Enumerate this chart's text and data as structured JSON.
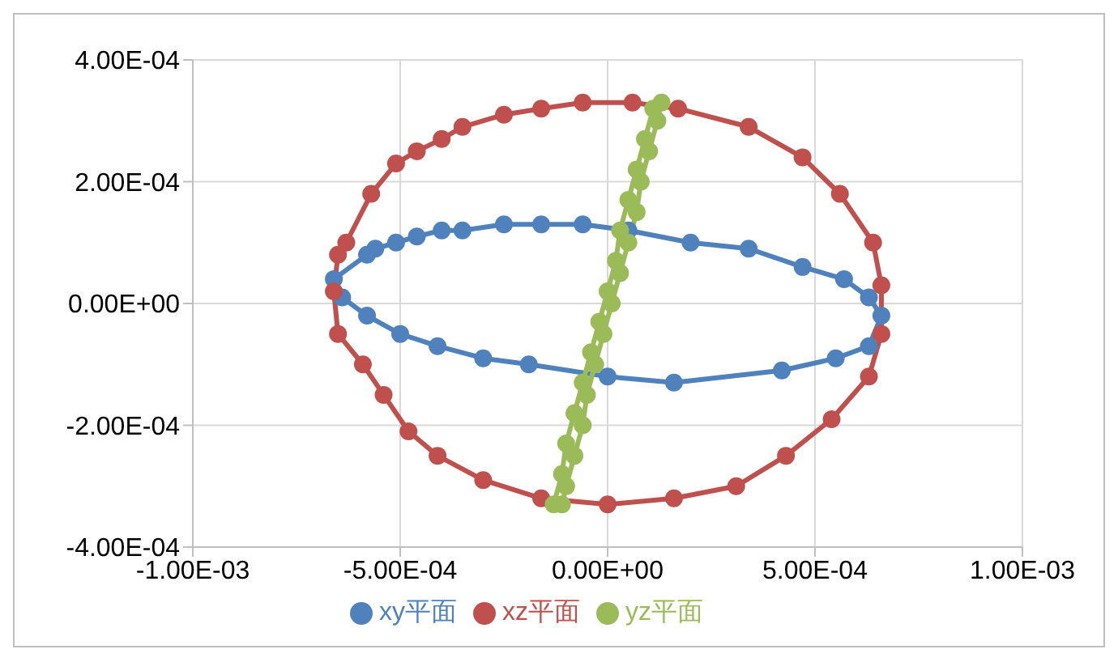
{
  "chart_data": {
    "type": "line",
    "xlim": [
      -0.001,
      0.001
    ],
    "ylim": [
      -0.0004,
      0.0004
    ],
    "xticks": [
      {
        "value": -0.001,
        "label": "-1.00E-03"
      },
      {
        "value": -0.0005,
        "label": "-5.00E-04"
      },
      {
        "value": 0,
        "label": "0.00E+00"
      },
      {
        "value": 0.0005,
        "label": "5.00E-04"
      },
      {
        "value": 0.001,
        "label": "1.00E-03"
      }
    ],
    "yticks": [
      {
        "value": -0.0004,
        "label": "-4.00E-04"
      },
      {
        "value": -0.0002,
        "label": "-2.00E-04"
      },
      {
        "value": 0,
        "label": "0.00E+00"
      },
      {
        "value": 0.0002,
        "label": "2.00E-04"
      },
      {
        "value": 0.0004,
        "label": "4.00E-04"
      }
    ],
    "grid": true,
    "legend": "bottom",
    "marker": "circle",
    "line_style": "solid",
    "series": [
      {
        "name": "xy平面",
        "color": "#4f81bd",
        "x": [
          -0.00066,
          -0.00058,
          -0.00056,
          -0.00051,
          -0.00046,
          -0.0004,
          -0.00035,
          -0.00025,
          -0.00016,
          -6e-05,
          5e-05,
          0.0002,
          0.00034,
          0.00047,
          0.00057,
          0.00063,
          0.00066,
          0.00063,
          0.00055,
          0.00042,
          0.00016,
          0,
          -0.00019,
          -0.0003,
          -0.00041,
          -0.0005,
          -0.00058,
          -0.00064
        ],
        "values": [
          4e-05,
          8e-05,
          9e-05,
          0.0001,
          0.00011,
          0.00012,
          0.00012,
          0.00013,
          0.00013,
          0.00013,
          0.00012,
          0.0001,
          9e-05,
          6e-05,
          4e-05,
          1e-05,
          -2e-05,
          -7e-05,
          -9e-05,
          -0.00011,
          -0.00013,
          -0.00012,
          -0.0001,
          -9e-05,
          -7e-05,
          -5e-05,
          -2e-05,
          1e-05
        ]
      },
      {
        "name": "xz平面",
        "color": "#c0504d",
        "x": [
          -0.00063,
          -0.00057,
          -0.00051,
          -0.00046,
          -0.0004,
          -0.00035,
          -0.00025,
          -0.00016,
          -6e-05,
          6e-05,
          0.00017,
          0.00034,
          0.00047,
          0.00056,
          0.00064,
          0.00066,
          0.00066,
          0.00063,
          0.00054,
          0.00043,
          0.00031,
          0.00016,
          0,
          -0.00016,
          -0.0003,
          -0.00041,
          -0.00048,
          -0.00054,
          -0.00059,
          -0.00065,
          -0.00066,
          -0.00065
        ],
        "values": [
          0.0001,
          0.00018,
          0.00023,
          0.00025,
          0.00027,
          0.00029,
          0.00031,
          0.00032,
          0.00033,
          0.00033,
          0.00032,
          0.00029,
          0.00024,
          0.00018,
          0.0001,
          3e-05,
          -5e-05,
          -0.00012,
          -0.00019,
          -0.00025,
          -0.0003,
          -0.00032,
          -0.00033,
          -0.00032,
          -0.00029,
          -0.00025,
          -0.00021,
          -0.00015,
          -0.0001,
          -5e-05,
          2e-05,
          8e-05
        ]
      },
      {
        "name": "yz平面",
        "color": "#9bbb59",
        "x": [
          -0.00011,
          -0.0001,
          -8e-05,
          -6e-05,
          -5e-05,
          -3e-05,
          -1e-05,
          1e-05,
          3e-05,
          5e-05,
          7e-05,
          8e-05,
          0.0001,
          0.00012,
          0.00013,
          0.00011,
          9e-05,
          7e-05,
          5e-05,
          3e-05,
          2e-05,
          0,
          -2e-05,
          -4e-05,
          -6e-05,
          -8e-05,
          -0.0001,
          -0.00011,
          -0.00013
        ],
        "values": [
          -0.00033,
          -0.0003,
          -0.00025,
          -0.0002,
          -0.00015,
          -0.0001,
          -5e-05,
          0,
          5e-05,
          0.0001,
          0.00015,
          0.0002,
          0.00025,
          0.0003,
          0.00033,
          0.00032,
          0.00027,
          0.00022,
          0.00017,
          0.00012,
          7e-05,
          2e-05,
          -3e-05,
          -8e-05,
          -0.00013,
          -0.00018,
          -0.00023,
          -0.00028,
          -0.00033
        ]
      }
    ]
  }
}
